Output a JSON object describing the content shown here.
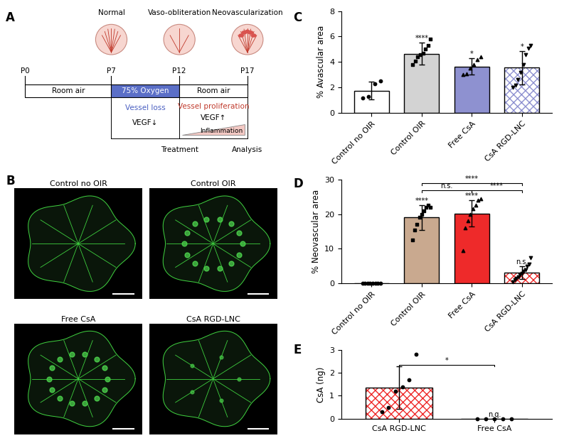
{
  "panel_labels": [
    "A",
    "B",
    "C",
    "D",
    "E"
  ],
  "diagram": {
    "days": [
      "P0",
      "P7",
      "P12",
      "P17"
    ],
    "stages": [
      "Normal",
      "Vaso-obliteration",
      "Neovascularization"
    ],
    "conditions": [
      "Room air",
      "75% Oxygen",
      "Room air"
    ],
    "phase1": [
      "Vessel loss",
      "VEGF↓"
    ],
    "phase2": [
      "Vessel proliferation",
      "VEGF↑",
      "Inflammation"
    ],
    "events": [
      "Treatment",
      "Analysis"
    ]
  },
  "images": {
    "titles": [
      "Control no OIR",
      "Control OIR",
      "Free CsA",
      "CsA RGD-LNC"
    ]
  },
  "chart_data": [
    {
      "type": "bar",
      "ylabel": "% Avascular area",
      "categories": [
        "Control no OIR",
        "Control OIR",
        "Free CsA",
        "CsA RGD-LNC"
      ],
      "values": [
        1.75,
        4.65,
        3.65,
        3.55
      ],
      "errors": [
        0.7,
        0.85,
        0.65,
        1.3
      ],
      "points": [
        [
          1.2,
          1.3,
          2.3,
          2.5
        ],
        [
          3.8,
          4.1,
          4.4,
          4.6,
          4.7,
          5.0,
          5.3,
          5.8
        ],
        [
          3.0,
          3.1,
          3.5,
          3.8,
          4.2,
          4.4
        ],
        [
          2.0,
          2.2,
          2.6,
          3.2,
          3.8,
          4.6,
          5.1,
          5.3
        ]
      ],
      "colors": [
        "#ffffff",
        "#d3d3d3",
        "#8e91d0",
        "#8e91d0"
      ],
      "ylim": [
        0,
        8
      ],
      "yticks": [
        0,
        2,
        4,
        6,
        8
      ],
      "annotations": [
        {
          "category": "Control OIR",
          "text": "****"
        },
        {
          "category": "Free CsA",
          "text": "*"
        },
        {
          "category": "CsA RGD-LNC",
          "text": "*"
        }
      ],
      "comparisons": []
    },
    {
      "type": "bar",
      "ylabel": "% Neovascular area",
      "categories": [
        "Control no OIR",
        "Control OIR",
        "Free CsA",
        "CsA RGD-LNC"
      ],
      "values": [
        0.1,
        19.0,
        20.2,
        3.1
      ],
      "errors": [
        0.1,
        3.5,
        3.8,
        1.8
      ],
      "points": [
        [
          0.1,
          0.1,
          0.1,
          0.1,
          0.1,
          0.1,
          0.1,
          0.1
        ],
        [
          12.5,
          15.5,
          17,
          19,
          20,
          21,
          22,
          22.5,
          22
        ],
        [
          9.5,
          16,
          18,
          20,
          21.5,
          22.5,
          24,
          24.5
        ],
        [
          0.5,
          1,
          1.5,
          2,
          2.5,
          3,
          3.5,
          4,
          5,
          5.5,
          7.5
        ]
      ],
      "colors": [
        "#ffffff",
        "#c9a98f",
        "#ee2a2a",
        "#ee2a2a"
      ],
      "ylim": [
        0,
        30
      ],
      "yticks": [
        0,
        10,
        20,
        30
      ],
      "annotations": [
        {
          "category": "Control OIR",
          "text": "****"
        },
        {
          "category": "Free CsA",
          "text": "****"
        },
        {
          "category": "CsA RGD-LNC",
          "text": "n.s."
        }
      ],
      "comparisons": [
        {
          "from": "Control OIR",
          "to": "Free CsA",
          "text": "n.s."
        },
        {
          "from": "Free CsA",
          "to": "CsA RGD-LNC",
          "text": "****"
        },
        {
          "from": "Control OIR",
          "to": "CsA RGD-LNC",
          "text": "****"
        }
      ]
    },
    {
      "type": "bar",
      "ylabel": "CsA (ng)",
      "categories": [
        "CsA RGD-LNC",
        "Free CsA"
      ],
      "values": [
        1.35,
        0
      ],
      "errors": [
        0.92,
        0
      ],
      "points": [
        [
          0.3,
          0.5,
          1.2,
          1.4,
          1.7,
          2.8
        ],
        [
          0,
          0,
          0,
          0,
          0
        ]
      ],
      "colors": [
        "#ee2a2a",
        "#ffffff"
      ],
      "ylim": [
        0,
        3
      ],
      "yticks": [
        0,
        1,
        2,
        3
      ],
      "annotations": [
        {
          "category": "Free CsA",
          "text": "n.q."
        }
      ],
      "comparisons": [
        {
          "from": "CsA RGD-LNC",
          "to": "Free CsA",
          "text": "*"
        }
      ]
    }
  ]
}
